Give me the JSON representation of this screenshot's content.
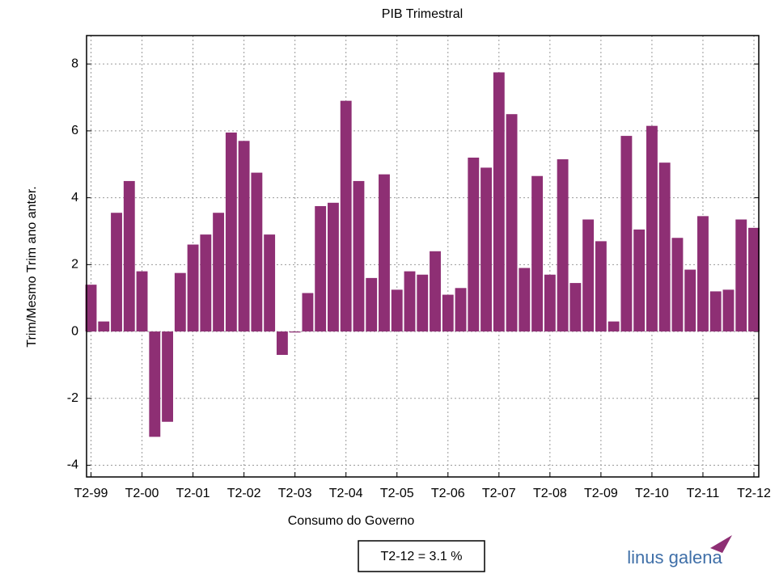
{
  "chart_data": {
    "type": "bar",
    "title": "PIB Trimestral",
    "x_label": "Consumo do Governo",
    "y_label": "Trim/Mesmo Trim ano anter.",
    "annotation": "T2-12 = 3.1 %",
    "logo": "linus galena",
    "categories": [
      "T2-99",
      null,
      null,
      null,
      "T2-00",
      null,
      null,
      null,
      "T2-01",
      null,
      null,
      null,
      "T2-02",
      null,
      null,
      null,
      "T2-03",
      null,
      null,
      null,
      "T2-04",
      null,
      null,
      null,
      "T2-05",
      null,
      null,
      null,
      "T2-06",
      null,
      null,
      null,
      "T2-07",
      null,
      null,
      null,
      "T2-08",
      null,
      null,
      null,
      "T2-09",
      null,
      null,
      null,
      "T2-10",
      null,
      null,
      null,
      "T2-11",
      null,
      null,
      null,
      "T2-12"
    ],
    "values": [
      1.4,
      0.3,
      3.55,
      4.5,
      1.8,
      -3.15,
      -2.7,
      1.75,
      2.6,
      2.9,
      3.55,
      5.95,
      5.7,
      4.75,
      2.9,
      -0.7,
      -0.03,
      1.15,
      3.75,
      3.85,
      6.9,
      4.5,
      1.6,
      4.7,
      1.25,
      1.8,
      1.7,
      2.4,
      1.1,
      1.3,
      5.2,
      4.9,
      7.75,
      6.5,
      1.9,
      4.65,
      1.7,
      5.15,
      1.45,
      3.35,
      2.7,
      0.3,
      5.85,
      3.05,
      6.15,
      5.05,
      2.8,
      1.85,
      3.45,
      1.2,
      1.25,
      3.35,
      3.1
    ],
    "color": "#8e2f74",
    "ylim": [
      -4.35,
      8.85
    ],
    "yticks": [
      -4,
      -2,
      0,
      2,
      4,
      6,
      8
    ],
    "grid": true
  }
}
